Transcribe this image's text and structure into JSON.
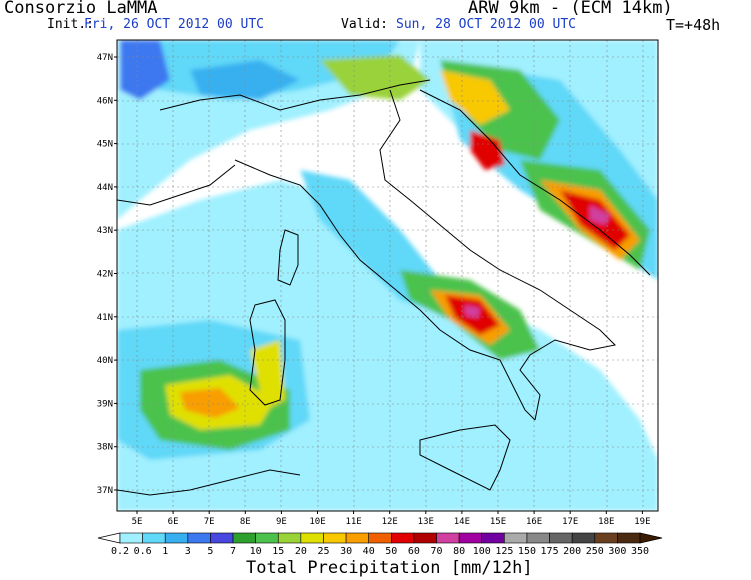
{
  "header": {
    "title": "Consorzio LaMMA",
    "model": "ARW 9km - (ECM 14km)",
    "init_label": "Init.:",
    "init_value": "Fri, 26 OCT 2012  00 UTC",
    "valid_label": "Valid:",
    "valid_value": "Sun, 28 OCT 2012  00 UTC",
    "lead_time": "T=+48h"
  },
  "map": {
    "lat_labels": [
      "47N",
      "46N",
      "45N",
      "44N",
      "43N",
      "42N",
      "41N",
      "40N",
      "39N",
      "38N",
      "37N"
    ],
    "lon_labels": [
      "5E",
      "6E",
      "7E",
      "8E",
      "9E",
      "10E",
      "11E",
      "12E",
      "13E",
      "14E",
      "15E",
      "16E",
      "17E",
      "18E",
      "19E"
    ],
    "max_precipitation_regions": [
      "Northern Adriatic / Croatian coast",
      "Campania",
      "Dalmatian coast",
      "Southern Sardinia sea"
    ]
  },
  "colorbar": {
    "title": "Total Precipitation [mm/12h]",
    "labels": [
      "0.2",
      "0.6",
      "1",
      "3",
      "5",
      "7",
      "10",
      "15",
      "20",
      "25",
      "30",
      "40",
      "50",
      "60",
      "70",
      "80",
      "100",
      "125",
      "150",
      "175",
      "200",
      "250",
      "300",
      "350"
    ],
    "colors": [
      "#ffffff",
      "#a0f0ff",
      "#60d8f8",
      "#38b0f0",
      "#3c78f0",
      "#4848e0",
      "#2ea02e",
      "#4cc24c",
      "#9ad23a",
      "#e0e000",
      "#f8c800",
      "#f89e00",
      "#f06000",
      "#e00000",
      "#b00000",
      "#d040a0",
      "#a000a0",
      "#7000a0",
      "#aaaaaa",
      "#888888",
      "#666666",
      "#444444",
      "#6a4020",
      "#4a2a10",
      "#3a1a00"
    ]
  }
}
